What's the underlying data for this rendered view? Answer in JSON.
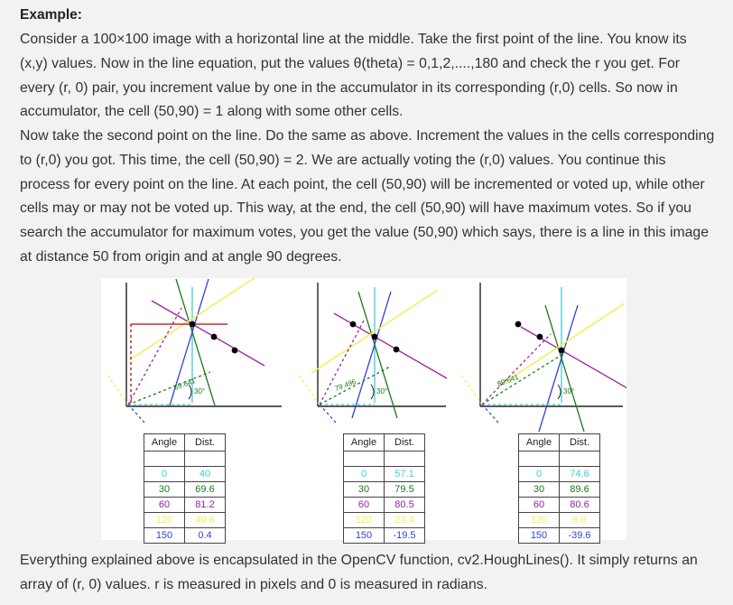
{
  "heading": "Example:",
  "paragraph1": "Consider a 100×100 image with a horizontal line at the middle. Take the first point of the line. You know its (x,y) values. Now in the line equation, put the values θ(theta) = 0,1,2,....,180 and check the r you get. For every (r, 0) pair, you increment value by one in the accumulator in its corresponding (r,0) cells. So now in accumulator, the cell (50,90) = 1 along with some other cells.",
  "paragraph2": "Now take the second point on the line. Do the same as above. Increment the values in the cells corresponding to (r,0) you got. This time, the cell (50,90) = 2. We are actually voting the (r,0) values. You continue this process for every point on the line. At each point, the cell (50,90) will be incremented or voted up, while other cells may or may not be voted up. This way, at the end, the cell (50,90) will have maximum votes. So if you search the accumulator for maximum votes, you get the value (50,90) which says, there is a line in this image at distance 50 from origin and at angle 90 degrees.",
  "paragraph3": "Everything explained above is encapsulated in the OpenCV function, cv2.HoughLines(). It simply returns an array of (r, 0) values. r is measured in pixels and 0 is measured in radians.",
  "colors": {
    "c0": "#44c8d8",
    "c30": "#1a7a1a",
    "c60": "#a020a0",
    "c120": "#f0f050",
    "c150": "#3344cc",
    "red": "#c00000"
  },
  "figure": {
    "angle_mark": "30°",
    "panels": [
      {
        "dist_label": "69.641",
        "rows": [
          {
            "angle": "0",
            "dist": "40"
          },
          {
            "angle": "30",
            "dist": "69.6"
          },
          {
            "angle": "60",
            "dist": "81.2"
          },
          {
            "angle": "120",
            "dist": "40.6"
          },
          {
            "angle": "150",
            "dist": "0.4"
          }
        ]
      },
      {
        "dist_label": "79.496",
        "rows": [
          {
            "angle": "0",
            "dist": "57.1"
          },
          {
            "angle": "30",
            "dist": "79.5"
          },
          {
            "angle": "60",
            "dist": "80.5"
          },
          {
            "angle": "120",
            "dist": "23.4"
          },
          {
            "angle": "150",
            "dist": "-19.5"
          }
        ]
      },
      {
        "dist_label": "89.641",
        "rows": [
          {
            "angle": "0",
            "dist": "74.6"
          },
          {
            "angle": "30",
            "dist": "89.6"
          },
          {
            "angle": "60",
            "dist": "80.6"
          },
          {
            "angle": "120",
            "dist": "6.0"
          },
          {
            "angle": "150",
            "dist": "-39.6"
          }
        ]
      }
    ],
    "table_header": {
      "angle": "Angle",
      "dist": "Dist."
    }
  }
}
